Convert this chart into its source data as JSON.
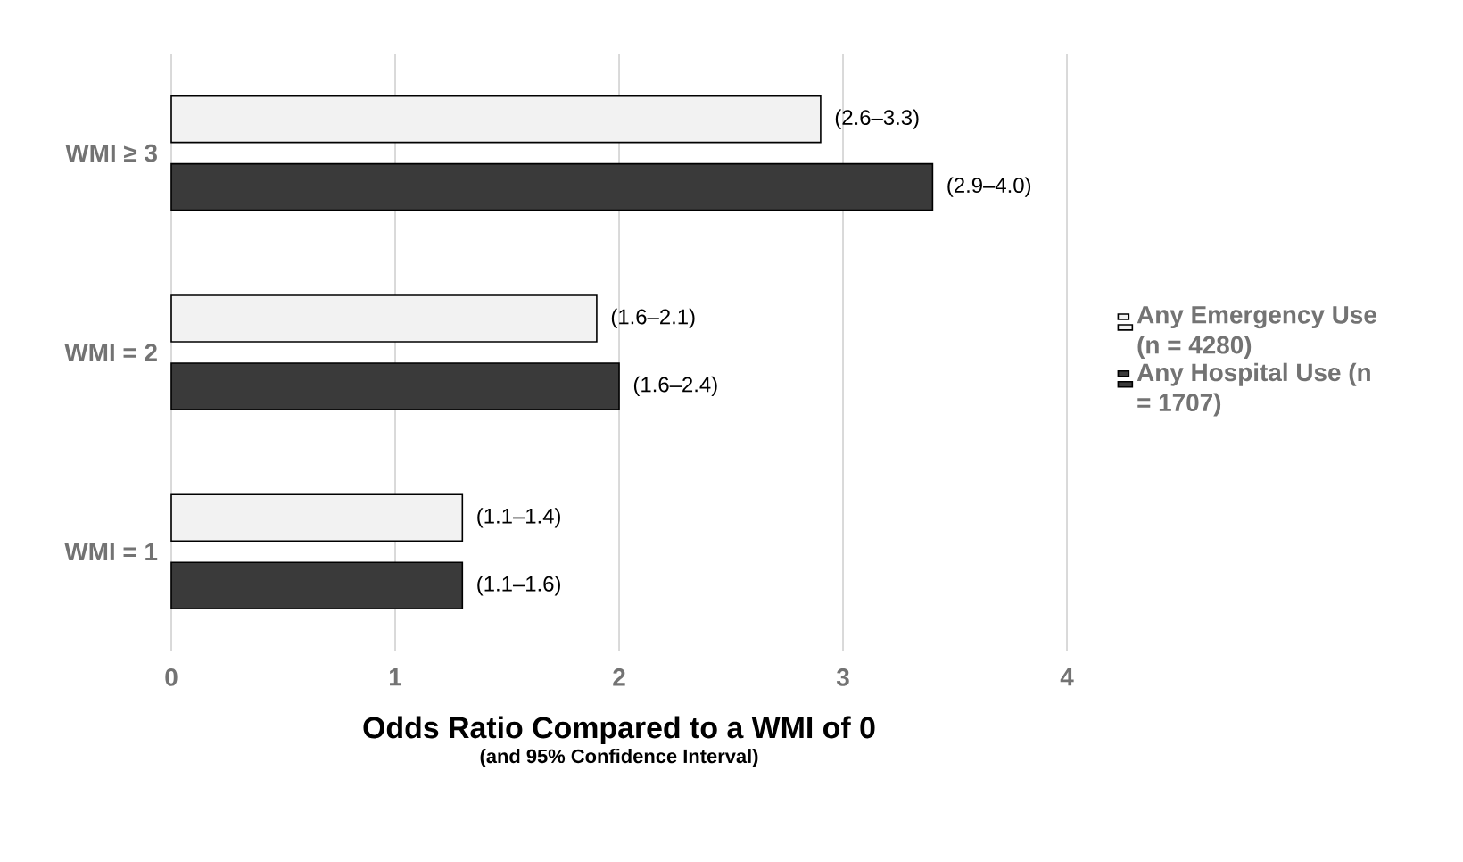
{
  "chart_data": {
    "type": "bar",
    "orientation": "horizontal",
    "categories": [
      "WMI ≥ 3",
      "WMI = 2",
      "WMI = 1"
    ],
    "series": [
      {
        "name": "Any Emergency Use (n = 4280)",
        "color": "#f2f2f2",
        "values": [
          2.9,
          1.9,
          1.3
        ],
        "value_labels": [
          "(2.6–3.3)",
          "(1.6–2.1)",
          "(1.1–1.4)"
        ]
      },
      {
        "name": "Any Hospital Use (n = 1707)",
        "color": "#3a3a3a",
        "values": [
          3.4,
          2.0,
          1.3
        ],
        "value_labels": [
          "(2.9–4.0)",
          "(1.6–2.4)",
          "(1.1–1.6)"
        ]
      }
    ],
    "xlabel": "Odds Ratio Compared to a WMI of 0",
    "annotations": [
      "(and 95% Confidence Interval)"
    ],
    "xlim": [
      0,
      4
    ],
    "xticks": [
      0,
      1,
      2,
      3,
      4
    ],
    "grid": "x",
    "legend": "right"
  }
}
